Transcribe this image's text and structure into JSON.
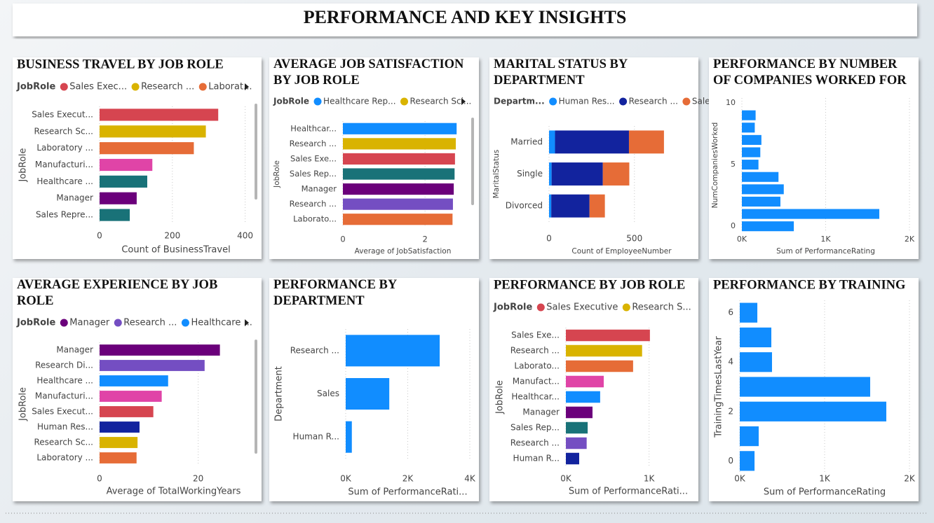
{
  "title": "PERFORMANCE AND KEY INSIGHTS",
  "chart_data": [
    {
      "type": "bar",
      "orientation": "horizontal",
      "title": "BUSINESS TRAVEL BY JOB ROLE",
      "legend": {
        "title": "JobRole",
        "items": [
          {
            "name": "Sales Exec...",
            "color": "#D64550"
          },
          {
            "name": "Research ...",
            "color": "#D9B300"
          },
          {
            "name": "Laborat...",
            "color": "#E66C37"
          }
        ]
      },
      "categories": [
        "Sales Execut...",
        "Research Sc...",
        "Laboratory ...",
        "Manufacturi...",
        "Healthcare ...",
        "Manager",
        "Sales Repre..."
      ],
      "values": [
        326,
        292,
        259,
        145,
        131,
        102,
        83
      ],
      "colors": [
        "#D64550",
        "#D9B300",
        "#E66C37",
        "#E044A7",
        "#197278",
        "#6B007B",
        "#197278"
      ],
      "xlim": [
        0,
        420
      ],
      "xticks": [
        0,
        200,
        400
      ],
      "x_label": "Count of BusinessTravel",
      "y_label": "JobRole",
      "grid": true
    },
    {
      "type": "bar",
      "orientation": "horizontal",
      "title": "AVERAGE JOB SATISFACTION BY JOB ROLE",
      "legend": {
        "title": "JobRole",
        "items": [
          {
            "name": "Healthcare Rep...",
            "color": "#118DFF"
          },
          {
            "name": "Research Sci...",
            "color": "#D9B300"
          }
        ]
      },
      "categories": [
        "Healthcar...",
        "Research ...",
        "Sales Exe...",
        "Sales Rep...",
        "Manager",
        "Research ...",
        "Laborato..."
      ],
      "values": [
        2.77,
        2.75,
        2.73,
        2.72,
        2.7,
        2.68,
        2.67
      ],
      "colors": [
        "#118DFF",
        "#D9B300",
        "#D64550",
        "#197278",
        "#6B007B",
        "#744EC2",
        "#E66C37"
      ],
      "xlim": [
        0,
        2.92
      ],
      "xticks": [
        0,
        2
      ],
      "x_label": "Average of JobSatisfaction",
      "y_label": "JobRole",
      "grid": true
    },
    {
      "type": "bar",
      "orientation": "horizontal",
      "stacked": true,
      "title": "MARITAL STATUS BY DEPARTMENT",
      "legend_title": "Departm...",
      "categories": [
        "Married",
        "Single",
        "Divorced"
      ],
      "series": [
        {
          "name": "Human Res...",
          "color": "#118DFF",
          "values": [
            35,
            15,
            13
          ]
        },
        {
          "name": "Research ...",
          "color": "#12239E",
          "values": [
            433,
            300,
            224
          ]
        },
        {
          "name": "Sales",
          "color": "#E66C37",
          "values": [
            205,
            155,
            90
          ]
        }
      ],
      "xlim": [
        0,
        850
      ],
      "xticks": [
        0,
        500
      ],
      "x_label": "Count of EmployeeNumber",
      "y_label": "MaritalStatus",
      "grid": true
    },
    {
      "type": "bar",
      "orientation": "horizontal",
      "title": "PERFORMANCE BY NUMBER OF COMPANIES WORKED FOR",
      "y": [
        0,
        1,
        2,
        3,
        4,
        5,
        6,
        7,
        8,
        9
      ],
      "values": [
        620,
        1640,
        460,
        500,
        437,
        198,
        220,
        233,
        154,
        164
      ],
      "color": "#118DFF",
      "xlim": [
        0,
        2000
      ],
      "xticks": [
        {
          "value": 0,
          "label": "0K"
        },
        {
          "value": 1000,
          "label": "1K"
        },
        {
          "value": 2000,
          "label": "2K"
        }
      ],
      "ylim": [
        -0.5,
        10.4
      ],
      "yticks": [
        0,
        5,
        10
      ],
      "x_label": "Sum of PerformanceRating",
      "y_label": "NumCompaniesWorked",
      "grid": true
    },
    {
      "type": "bar",
      "orientation": "horizontal",
      "title": "AVERAGE EXPERIENCE BY JOB ROLE",
      "legend": {
        "title": "JobRole",
        "items": [
          {
            "name": "Manager",
            "color": "#6B007B"
          },
          {
            "name": "Research ...",
            "color": "#744EC2"
          },
          {
            "name": "Healthcare ...",
            "color": "#118DFF"
          }
        ]
      },
      "categories": [
        "Manager",
        "Research Di...",
        "Healthcare ...",
        "Manufacturi...",
        "Sales Execut...",
        "Human Res...",
        "Research Sc...",
        "Laboratory ..."
      ],
      "values": [
        24.4,
        21.3,
        13.9,
        12.6,
        10.9,
        8.1,
        7.7,
        7.5
      ],
      "colors": [
        "#6B007B",
        "#744EC2",
        "#118DFF",
        "#E044A7",
        "#D64550",
        "#12239E",
        "#D9B300",
        "#E66C37"
      ],
      "xlim": [
        0,
        30
      ],
      "xticks": [
        0,
        20
      ],
      "x_label": "Average of TotalWorkingYears",
      "y_label": "JobRole",
      "grid": true
    },
    {
      "type": "bar",
      "orientation": "horizontal",
      "title": "PERFORMANCE BY DEPARTMENT",
      "categories": [
        "Research ...",
        "Sales",
        "Human R..."
      ],
      "values": [
        3030,
        1405,
        198
      ],
      "color": "#118DFF",
      "xlim": [
        0,
        4000
      ],
      "xticks": [
        {
          "value": 0,
          "label": "0K"
        },
        {
          "value": 2000,
          "label": "2K"
        },
        {
          "value": 4000,
          "label": "4K"
        }
      ],
      "x_label": "Sum of PerformanceRati...",
      "y_label": "Department",
      "grid": true
    },
    {
      "type": "bar",
      "orientation": "horizontal",
      "title": "PERFORMANCE BY JOB ROLE",
      "legend": {
        "title": "JobRole",
        "items": [
          {
            "name": "Sales Executive",
            "color": "#D64550"
          },
          {
            "name": "Research S...",
            "color": "#D9B300"
          }
        ]
      },
      "categories": [
        "Sales Exe...",
        "Research ...",
        "Laborato...",
        "Manufact...",
        "Healthcar...",
        "Manager",
        "Sales Rep...",
        "Research ...",
        "Human R..."
      ],
      "values": [
        1010,
        916,
        808,
        455,
        412,
        320,
        262,
        250,
        160
      ],
      "colors": [
        "#D64550",
        "#D9B300",
        "#E66C37",
        "#E044A7",
        "#118DFF",
        "#6B007B",
        "#197278",
        "#744EC2",
        "#12239E"
      ],
      "xlim": [
        0,
        1500
      ],
      "xticks": [
        {
          "value": 0,
          "label": "0K"
        },
        {
          "value": 1000,
          "label": "1K"
        }
      ],
      "x_label": "Sum of PerformanceRati...",
      "y_label": "JobRole",
      "grid": true
    },
    {
      "type": "bar",
      "orientation": "horizontal",
      "title": "PERFORMANCE BY TRAINING",
      "y": [
        0,
        1,
        2,
        3,
        4,
        5,
        6
      ],
      "values": [
        174,
        223,
        1727,
        1537,
        380,
        372,
        207
      ],
      "color": "#118DFF",
      "xlim": [
        0,
        2000
      ],
      "xticks": [
        {
          "value": 0,
          "label": "0K"
        },
        {
          "value": 1000,
          "label": "1K"
        },
        {
          "value": 2000,
          "label": "2K"
        }
      ],
      "ylim": [
        -0.5,
        6.5
      ],
      "yticks": [
        0,
        2,
        4,
        6
      ],
      "x_label": "Sum of PerformanceRating",
      "y_label": "TrainingTimesLastYear",
      "grid": true
    }
  ]
}
